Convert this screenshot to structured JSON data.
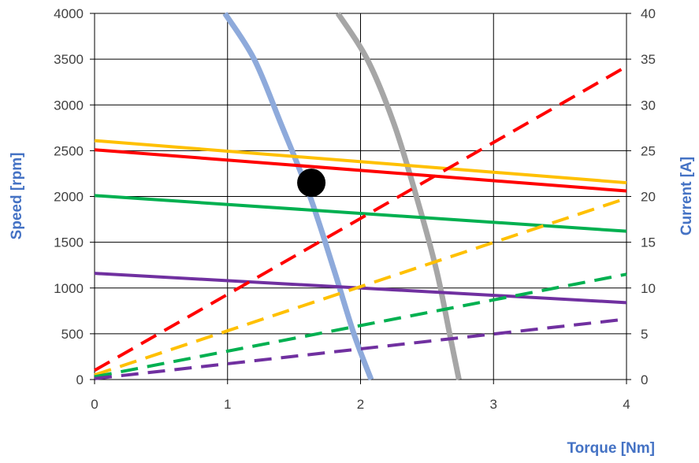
{
  "chart_data": {
    "type": "line",
    "title": "",
    "xlabel": "Torque [Nm]",
    "ylabel_left": "Speed [rpm]",
    "ylabel_right": "Current [A]",
    "xlim": [
      0,
      4
    ],
    "ylim_left": [
      0,
      4000
    ],
    "ylim_right": [
      0,
      40
    ],
    "x_ticks": [
      "0",
      "1",
      "2",
      "3",
      "4"
    ],
    "y_left_ticks": [
      "0",
      "500",
      "1000",
      "1500",
      "2000",
      "2500",
      "3000",
      "3500",
      "4000"
    ],
    "y_right_ticks": [
      "0",
      "5",
      "10",
      "15",
      "20",
      "25",
      "30",
      "35",
      "40"
    ],
    "grid": true,
    "legend": "none",
    "series": [
      {
        "id": "speed-yellow",
        "axis": "left",
        "style": "solid",
        "color": "#FFC000",
        "x": [
          0,
          4
        ],
        "y": [
          2610,
          2150
        ]
      },
      {
        "id": "speed-red",
        "axis": "left",
        "style": "solid",
        "color": "#FF0000",
        "x": [
          0,
          4
        ],
        "y": [
          2510,
          2060
        ]
      },
      {
        "id": "speed-green",
        "axis": "left",
        "style": "solid",
        "color": "#00B050",
        "x": [
          0,
          4
        ],
        "y": [
          2010,
          1620
        ]
      },
      {
        "id": "speed-purple",
        "axis": "left",
        "style": "solid",
        "color": "#7030A0",
        "x": [
          0,
          4
        ],
        "y": [
          1160,
          840
        ]
      },
      {
        "id": "current-red",
        "axis": "right",
        "style": "dashed",
        "color": "#FF0000",
        "x": [
          0,
          4
        ],
        "y": [
          1,
          34.2
        ]
      },
      {
        "id": "current-yellow",
        "axis": "right",
        "style": "dashed",
        "color": "#FFC000",
        "x": [
          0,
          4
        ],
        "y": [
          0.5,
          19.8
        ]
      },
      {
        "id": "current-green",
        "axis": "right",
        "style": "dashed",
        "color": "#00B050",
        "x": [
          0,
          4
        ],
        "y": [
          0.3,
          11.5
        ]
      },
      {
        "id": "current-purple",
        "axis": "right",
        "style": "dashed",
        "color": "#7030A0",
        "x": [
          0,
          4
        ],
        "y": [
          0.1,
          6.6
        ]
      },
      {
        "id": "limit-blue",
        "axis": "left",
        "style": "thick",
        "color": "#8EAADB",
        "x": [
          0.98,
          1.2,
          1.4,
          1.62,
          1.8,
          1.95,
          2.08
        ],
        "y": [
          4000,
          3500,
          2800,
          2000,
          1200,
          500,
          0
        ]
      },
      {
        "id": "limit-gray",
        "axis": "left",
        "style": "thick",
        "color": "#A6A6A6",
        "x": [
          1.83,
          2.05,
          2.25,
          2.42,
          2.57,
          2.67,
          2.74
        ],
        "y": [
          4000,
          3500,
          2800,
          2000,
          1200,
          500,
          0
        ]
      }
    ],
    "marker": {
      "x": 1.63,
      "y": 2150,
      "color": "#000000"
    }
  }
}
